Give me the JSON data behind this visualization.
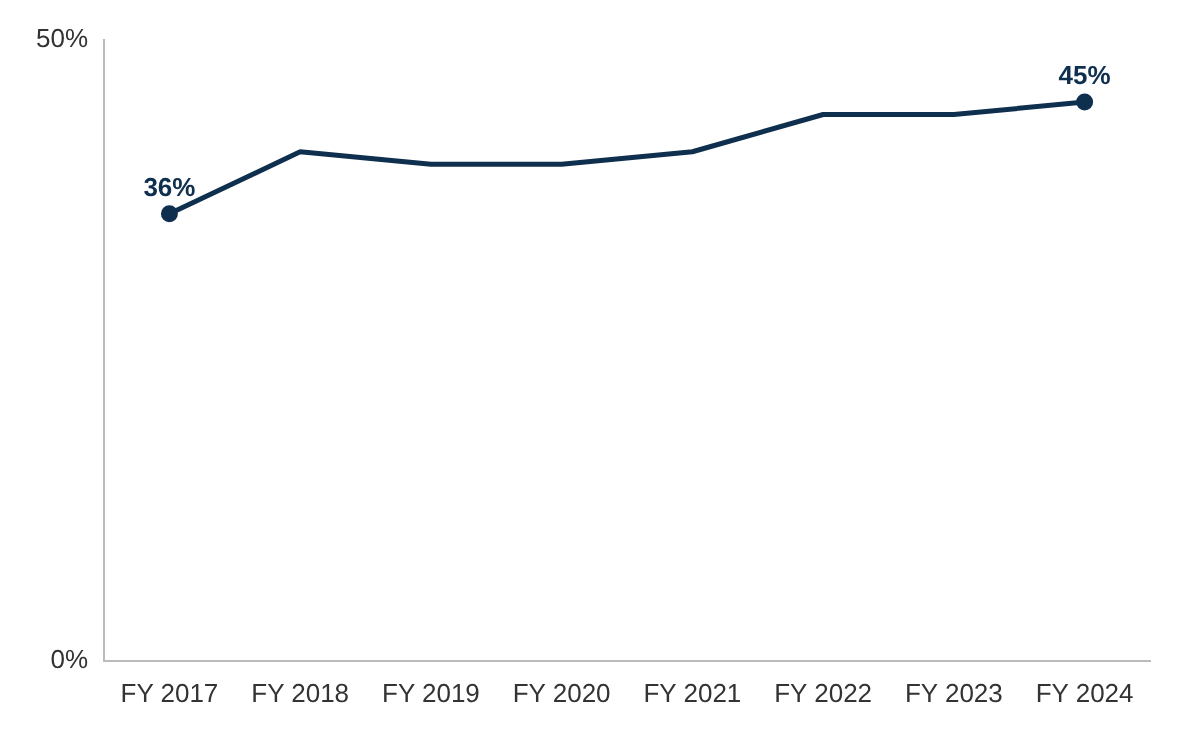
{
  "chart_data": {
    "type": "line",
    "categories": [
      "FY 2017",
      "FY 2018",
      "FY 2019",
      "FY 2020",
      "FY 2021",
      "FY 2022",
      "FY 2023",
      "FY 2024"
    ],
    "series": [
      {
        "color": "#0f2f4f",
        "values": [
          36,
          41,
          40,
          40,
          41,
          44,
          44,
          45
        ],
        "value_labels": [
          "36%",
          null,
          null,
          null,
          null,
          null,
          null,
          "45%"
        ]
      }
    ],
    "ylim": [
      0,
      50
    ],
    "yticks": [
      {
        "value": 0,
        "label": "0%"
      },
      {
        "value": 50,
        "label": "50%"
      }
    ],
    "grid": false,
    "legend": false,
    "line_style": "solid"
  }
}
